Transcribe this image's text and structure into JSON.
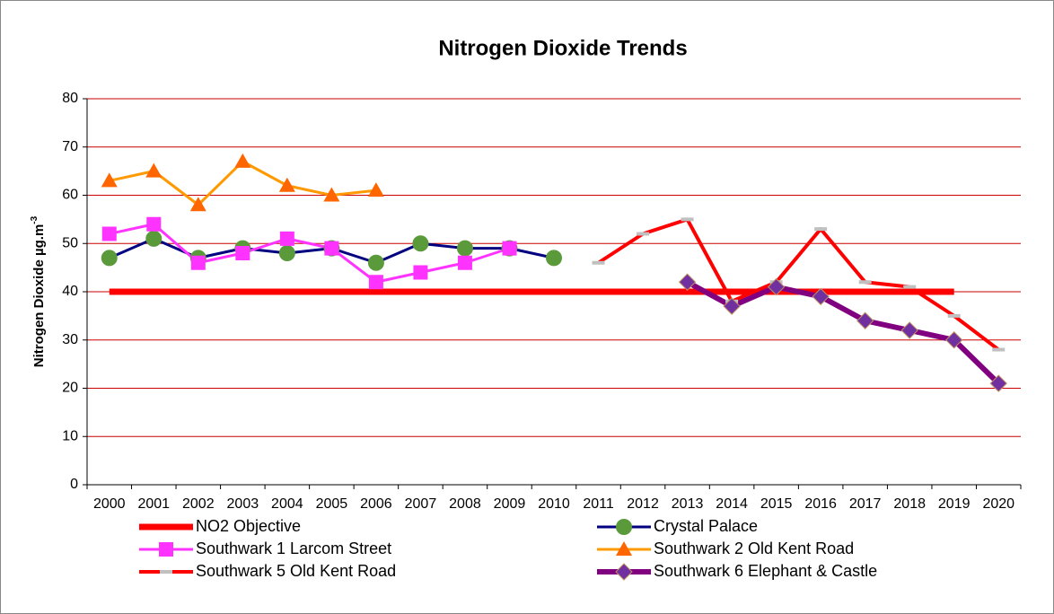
{
  "chart_data": {
    "type": "line",
    "title": "Nitrogen Dioxide Trends",
    "y_label": "Nitrogen Dioxide µg.m",
    "y_label_superscript": "-3",
    "categories": [
      "2000",
      "2001",
      "2002",
      "2003",
      "2004",
      "2005",
      "2006",
      "2007",
      "2008",
      "2009",
      "2010",
      "2011",
      "2012",
      "2013",
      "2014",
      "2015",
      "2016",
      "2017",
      "2018",
      "2019",
      "2020"
    ],
    "ylim": [
      0,
      80
    ],
    "yticks": [
      0,
      10,
      20,
      30,
      40,
      50,
      60,
      70,
      80
    ],
    "grid": true,
    "grid_color": "#cc0000",
    "legend": "bottom",
    "series": [
      {
        "name": "NO2 Objective",
        "color": "#ff0000",
        "marker": "none",
        "width": 7,
        "values": [
          40,
          40,
          40,
          40,
          40,
          40,
          40,
          40,
          40,
          40,
          40,
          40,
          40,
          40,
          40,
          40,
          40,
          40,
          40,
          40,
          null
        ]
      },
      {
        "name": "Crystal Palace",
        "color": "#000080",
        "marker": "circle",
        "marker_color": "#5a9a3a",
        "width": 3,
        "values": [
          47,
          51,
          47,
          49,
          48,
          49,
          46,
          50,
          49,
          49,
          47,
          null,
          null,
          null,
          null,
          null,
          null,
          null,
          null,
          null,
          null
        ]
      },
      {
        "name": "Southwark 1 Larcom Street",
        "color": "#ff33ff",
        "marker": "square",
        "marker_color": "#ff33ff",
        "width": 3,
        "values": [
          52,
          54,
          46,
          48,
          51,
          49,
          42,
          44,
          46,
          49,
          null,
          null,
          null,
          null,
          null,
          null,
          null,
          null,
          null,
          null,
          null
        ]
      },
      {
        "name": "Southwark 2 Old Kent Road",
        "color": "#ff9900",
        "marker": "triangle",
        "marker_color": "#ff6600",
        "width": 3,
        "values": [
          63,
          65,
          58,
          67,
          62,
          60,
          61,
          null,
          null,
          null,
          null,
          null,
          null,
          null,
          null,
          null,
          null,
          null,
          null,
          null,
          null
        ]
      },
      {
        "name": "Southwark 5 Old Kent Road",
        "color": "#ff0000",
        "marker": "dash",
        "marker_color": "#c0c0c0",
        "width": 4,
        "values": [
          null,
          null,
          null,
          null,
          null,
          null,
          null,
          null,
          null,
          null,
          null,
          46,
          52,
          55,
          38,
          42,
          53,
          42,
          41,
          35,
          28
        ]
      },
      {
        "name": "Southwark 6 Elephant & Castle",
        "color": "#800080",
        "marker": "diamond",
        "marker_color": "#7030a0",
        "width": 6,
        "values": [
          null,
          null,
          null,
          null,
          null,
          null,
          null,
          null,
          null,
          null,
          null,
          null,
          null,
          42,
          37,
          41,
          39,
          34,
          32,
          30,
          21
        ]
      }
    ]
  }
}
